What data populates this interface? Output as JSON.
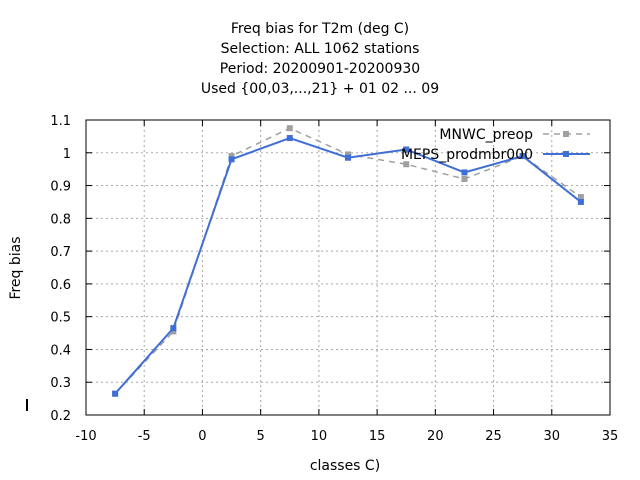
{
  "chart_data": {
    "type": "line",
    "title_lines": [
      "Freq bias  for T2m (deg C)",
      "Selection: ALL    1062 stations",
      "Period: 20200901-20200930",
      "Used {00,03,...,21} + 01 02 ... 09"
    ],
    "xlabel": "classes C)",
    "ylabel": "Freq bias",
    "xlim": [
      -10,
      35
    ],
    "ylim": [
      0.2,
      1.1
    ],
    "xticks": [
      -10,
      -5,
      0,
      5,
      10,
      15,
      20,
      25,
      30,
      35
    ],
    "yticks": [
      0.2,
      0.3,
      0.4,
      0.5,
      0.6,
      0.7,
      0.8,
      0.9,
      1,
      1.1
    ],
    "xtick_labels": [
      "-10",
      "-5",
      "0",
      "5",
      "10",
      "15",
      "20",
      "25",
      "30",
      "35"
    ],
    "ytick_labels": [
      "0.2",
      "0.3",
      "0.4",
      "0.5",
      "0.6",
      "0.7",
      "0.8",
      "0.9",
      "1",
      "1.1"
    ],
    "grid": true,
    "legend_position": "top-right",
    "x": [
      -7.5,
      -2.5,
      2.5,
      7.5,
      12.5,
      17.5,
      22.5,
      27.5,
      32.5
    ],
    "series": [
      {
        "name": "MNWC_preop",
        "color": "#a0a0a0",
        "dashed": true,
        "values": [
          0.265,
          0.455,
          0.99,
          1.075,
          0.995,
          0.965,
          0.92,
          0.99,
          0.865
        ]
      },
      {
        "name": "MEPS_prodmbr000",
        "color": "#3f6fd6",
        "dashed": false,
        "values": [
          0.265,
          0.465,
          0.98,
          1.045,
          0.985,
          1.01,
          0.94,
          0.99,
          0.85
        ]
      }
    ]
  }
}
